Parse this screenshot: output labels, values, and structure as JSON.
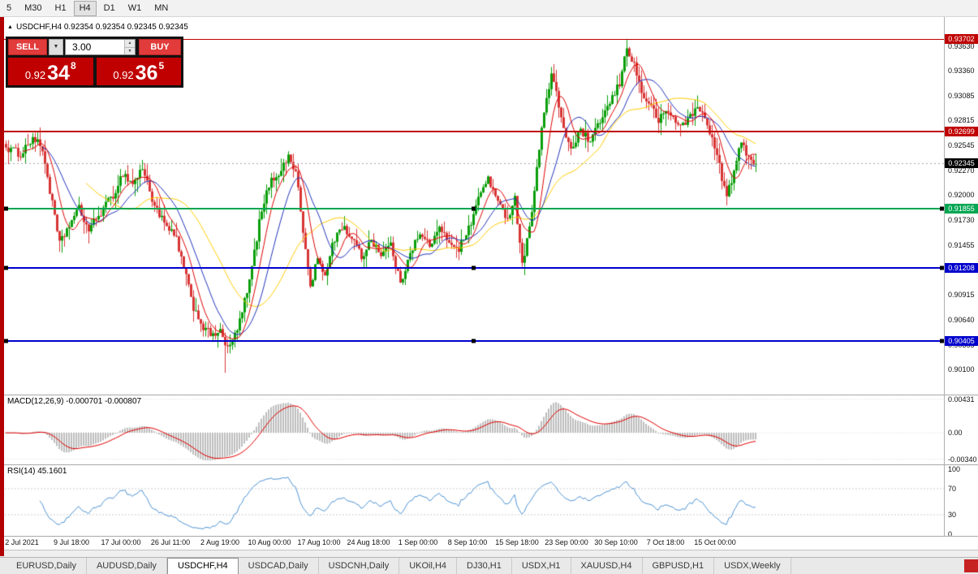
{
  "toolbar": {
    "timeframes": [
      {
        "label": "5",
        "active": false
      },
      {
        "label": "M30",
        "active": false
      },
      {
        "label": "H1",
        "active": false
      },
      {
        "label": "H4",
        "active": true
      },
      {
        "label": "D1",
        "active": false
      },
      {
        "label": "W1",
        "active": false
      },
      {
        "label": "MN",
        "active": false
      }
    ]
  },
  "chart_header": {
    "collapse_arrow": "▲",
    "title": "USDCHF,H4 0.92354 0.92354 0.92345 0.92345"
  },
  "trade_panel": {
    "sell_button": "SELL",
    "buy_button": "BUY",
    "volume_value": "3.00",
    "sell_price": {
      "prefix": "0.92",
      "big": "34",
      "sup": "8"
    },
    "buy_price": {
      "prefix": "0.92",
      "big": "36",
      "sup": "5"
    }
  },
  "price_axis": {
    "ticks": [
      "0.93630",
      "0.93360",
      "0.93085",
      "0.92815",
      "0.92545",
      "0.92270",
      "0.92000",
      "0.91730",
      "0.91455",
      "0.91180",
      "0.90915",
      "0.90640",
      "0.90365",
      "0.90100"
    ],
    "badges": [
      {
        "label": "0.93702",
        "price": 0.93702,
        "color": "#c00000",
        "name": "resistance-upper"
      },
      {
        "label": "0.92699",
        "price": 0.92699,
        "color": "#c00000",
        "name": "resistance-lower"
      },
      {
        "label": "0.92345",
        "price": 0.92345,
        "color": "#000000",
        "name": "current-price"
      },
      {
        "label": "0.91855",
        "price": 0.91855,
        "color": "#00a651",
        "name": "support-green"
      },
      {
        "label": "0.91208",
        "price": 0.91208,
        "color": "#0000cc",
        "name": "support-blue-upper"
      },
      {
        "label": "0.90405",
        "price": 0.90405,
        "color": "#0000cc",
        "name": "support-blue-lower"
      }
    ]
  },
  "horizontal_lines": [
    {
      "price": 0.93702,
      "color": "#c00000",
      "width": 1,
      "handles": false,
      "name": "hline-resistance-upper"
    },
    {
      "price": 0.92699,
      "color": "#c00000",
      "width": 2,
      "handles": false,
      "name": "hline-resistance-lower"
    },
    {
      "price": 0.91855,
      "color": "#00a651",
      "width": 2,
      "handles": true,
      "name": "hline-support-green"
    },
    {
      "price": 0.91208,
      "color": "#0000cc",
      "width": 2,
      "handles": true,
      "name": "hline-support-blue-upper"
    },
    {
      "price": 0.90405,
      "color": "#0000cc",
      "width": 2,
      "handles": true,
      "name": "hline-support-blue-lower"
    }
  ],
  "macd_panel": {
    "label": "MACD(12,26,9) -0.000701 -0.000807",
    "ticks": [
      {
        "label": "0.00431",
        "value": 0.00431
      },
      {
        "label": "0.00",
        "value": 0
      },
      {
        "label": "-0.00340",
        "value": -0.0034
      }
    ]
  },
  "rsi_panel": {
    "label": "RSI(14) 45.1601",
    "ticks": [
      {
        "label": "100",
        "value": 100
      },
      {
        "label": "70",
        "value": 70
      },
      {
        "label": "30",
        "value": 30
      },
      {
        "label": "0",
        "value": 0
      }
    ]
  },
  "time_axis": [
    "2 Jul 2021",
    "9 Jul 18:00",
    "17 Jul 00:00",
    "26 Jul 11:00",
    "2 Aug 19:00",
    "10 Aug 00:00",
    "17 Aug 10:00",
    "24 Aug 18:00",
    "1 Sep 00:00",
    "8 Sep 10:00",
    "15 Sep 18:00",
    "23 Sep 00:00",
    "30 Sep 10:00",
    "7 Oct 18:00",
    "15 Oct 00:00"
  ],
  "tabs": [
    {
      "label": "EURUSD,Daily",
      "active": false
    },
    {
      "label": "AUDUSD,Daily",
      "active": false
    },
    {
      "label": "USDCHF,H4",
      "active": true
    },
    {
      "label": "USDCAD,Daily",
      "active": false
    },
    {
      "label": "USDCNH,Daily",
      "active": false
    },
    {
      "label": "UKOil,H4",
      "active": false
    },
    {
      "label": "DJ30,H1",
      "active": false
    },
    {
      "label": "USDX,H1",
      "active": false
    },
    {
      "label": "XAUUSD,H4",
      "active": false
    },
    {
      "label": "GBPUSD,H1",
      "active": false
    },
    {
      "label": "USDX,Weekly",
      "active": false
    }
  ],
  "chart_data": {
    "type": "candlestick",
    "symbol": "USDCHF",
    "timeframe": "H4",
    "visible_price_range": {
      "top": 0.9375,
      "bottom": 0.9
    },
    "bull_color": "#0a9e0a",
    "bear_color": "#d83434",
    "anchors": [
      [
        0,
        0.9252
      ],
      [
        6,
        0.9245
      ],
      [
        11,
        0.9263
      ],
      [
        15,
        0.925
      ],
      [
        18,
        0.9205
      ],
      [
        22,
        0.9146
      ],
      [
        26,
        0.9168
      ],
      [
        30,
        0.9185
      ],
      [
        34,
        0.9162
      ],
      [
        38,
        0.9178
      ],
      [
        44,
        0.92
      ],
      [
        48,
        0.9224
      ],
      [
        52,
        0.9212
      ],
      [
        56,
        0.923
      ],
      [
        60,
        0.9196
      ],
      [
        65,
        0.9168
      ],
      [
        70,
        0.9152
      ],
      [
        73,
        0.912
      ],
      [
        77,
        0.9078
      ],
      [
        81,
        0.9056
      ],
      [
        85,
        0.9045
      ],
      [
        88,
        0.9056
      ],
      [
        90,
        0.9032
      ],
      [
        93,
        0.904
      ],
      [
        96,
        0.9062
      ],
      [
        100,
        0.9105
      ],
      [
        104,
        0.917
      ],
      [
        108,
        0.9212
      ],
      [
        113,
        0.9228
      ],
      [
        116,
        0.9242
      ],
      [
        119,
        0.9227
      ],
      [
        122,
        0.916
      ],
      [
        125,
        0.91
      ],
      [
        128,
        0.9132
      ],
      [
        131,
        0.9108
      ],
      [
        134,
        0.9148
      ],
      [
        138,
        0.9166
      ],
      [
        142,
        0.9154
      ],
      [
        146,
        0.9132
      ],
      [
        150,
        0.9152
      ],
      [
        154,
        0.9136
      ],
      [
        158,
        0.9146
      ],
      [
        162,
        0.9102
      ],
      [
        166,
        0.914
      ],
      [
        170,
        0.9156
      ],
      [
        174,
        0.9146
      ],
      [
        178,
        0.9162
      ],
      [
        182,
        0.915
      ],
      [
        186,
        0.9142
      ],
      [
        190,
        0.9163
      ],
      [
        194,
        0.9196
      ],
      [
        198,
        0.922
      ],
      [
        202,
        0.919
      ],
      [
        206,
        0.9176
      ],
      [
        209,
        0.9196
      ],
      [
        212,
        0.9126
      ],
      [
        215,
        0.9162
      ],
      [
        218,
        0.9232
      ],
      [
        221,
        0.929
      ],
      [
        224,
        0.9332
      ],
      [
        227,
        0.9298
      ],
      [
        230,
        0.9262
      ],
      [
        233,
        0.925
      ],
      [
        236,
        0.9272
      ],
      [
        240,
        0.9256
      ],
      [
        244,
        0.9282
      ],
      [
        248,
        0.93
      ],
      [
        252,
        0.9322
      ],
      [
        255,
        0.9362
      ],
      [
        258,
        0.9342
      ],
      [
        261,
        0.9312
      ],
      [
        264,
        0.93
      ],
      [
        268,
        0.9282
      ],
      [
        272,
        0.9292
      ],
      [
        276,
        0.9276
      ],
      [
        280,
        0.9282
      ],
      [
        284,
        0.9296
      ],
      [
        288,
        0.928
      ],
      [
        292,
        0.9242
      ],
      [
        296,
        0.9198
      ],
      [
        299,
        0.9226
      ],
      [
        302,
        0.9258
      ],
      [
        305,
        0.9242
      ],
      [
        308,
        0.92345
      ]
    ],
    "forced_extremes": [
      {
        "i": 90,
        "low": 0.9006
      },
      {
        "i": 224,
        "high": 0.934
      },
      {
        "i": 255,
        "high": 0.937
      },
      {
        "i": 308,
        "close": 0.92345
      }
    ],
    "moving_averages": [
      {
        "period": 34,
        "color": "#ffcc00"
      },
      {
        "period": 16,
        "color": "#2233bb"
      },
      {
        "period": 8,
        "color": "#dd0000"
      }
    ],
    "macd": {
      "fast": 12,
      "slow": 26,
      "signal": 9,
      "histogram_color": "#bdbdbd",
      "signal_color": "#e00000"
    },
    "rsi": {
      "period": 14,
      "color": "#4f93d2",
      "levels": [
        70,
        30
      ]
    }
  }
}
